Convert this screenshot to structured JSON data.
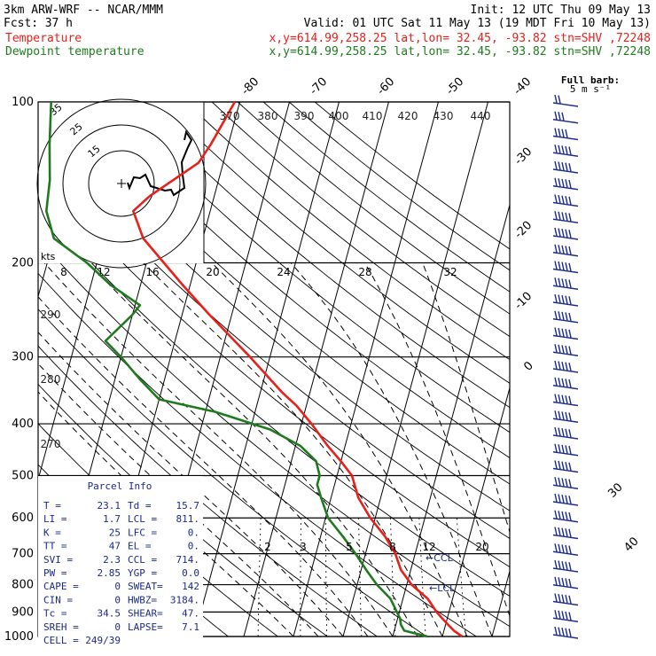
{
  "header": {
    "model": "3km ARW-WRF -- NCAR/MMM",
    "init": "Init: 12 UTC Thu 09 May 13",
    "fcst_label": "Fcst:",
    "fcst_value": "37 h",
    "valid": "Valid: 01 UTC Sat 11 May 13 (19 MDT Fri 10 May 13)"
  },
  "legend": {
    "temperature": {
      "label": "Temperature",
      "color": "#e8201a",
      "info": "x,y=614.99,258.25   lat,lon= 32.45, -93.82  stn=SHV ,72248"
    },
    "dewpoint": {
      "label": "Dewpoint temperature",
      "color": "#1f7a1f",
      "info": "x,y=614.99,258.25   lat,lon= 32.45, -93.82  stn=SHV ,72248"
    }
  },
  "wind_title": {
    "line1": "Full barb:",
    "line2": "5 m s⁻¹"
  },
  "hodograph": {
    "speed_label": "kts",
    "ring_labels": [
      "15",
      "25",
      "35"
    ],
    "x_tick_labels": [
      "8",
      "12",
      "16",
      "20",
      "24",
      "28",
      "32"
    ]
  },
  "parcel_info": {
    "title": "Parcel Info",
    "rows": [
      [
        "T  =",
        "23.1",
        "Td =",
        "15.7"
      ],
      [
        "LI =",
        "1.7",
        "LCL =",
        "811."
      ],
      [
        "K  =",
        "25",
        "LFC =",
        "0."
      ],
      [
        "TT =",
        "47",
        "EL =",
        "0."
      ],
      [
        "SVI =",
        "2.3",
        "CCL =",
        "714."
      ],
      [
        "PW =",
        "2.85",
        "YGP =",
        "0.0"
      ],
      [
        "CAPE =",
        "0",
        "SWEAT=",
        "142"
      ],
      [
        "CIN =",
        "0",
        "HWBZ=",
        "3184."
      ],
      [
        "Tc =",
        "34.5",
        "SHEAR=",
        "47."
      ],
      [
        "SREH =",
        "0",
        "LAPSE=",
        "7.1"
      ],
      [
        "CELL =",
        "249/39",
        "",
        ""
      ]
    ]
  },
  "chart_data": {
    "type": "line",
    "title": "Skew-T log-P diagram",
    "xlabel": "",
    "ylabel": "",
    "pressure_levels": [
      1000,
      900,
      800,
      700,
      600,
      500,
      400,
      300,
      200,
      100
    ],
    "isotherm_labels": [
      "-80",
      "-70",
      "-60",
      "-50",
      "-40",
      "-30",
      "-20",
      "-10",
      "0",
      "30",
      "40"
    ],
    "theta_labels": [
      "370",
      "380",
      "390",
      "400",
      "410",
      "420",
      "430",
      "440",
      "290",
      "280",
      "270"
    ],
    "mixing_ratio_labels": [
      "2",
      "3",
      "5",
      "8",
      "12",
      "20"
    ],
    "markers": [
      "CCL",
      "LCL"
    ],
    "series": [
      {
        "name": "Temperature",
        "color": "#e8201a",
        "p": [
          1000,
          975,
          950,
          925,
          900,
          850,
          800,
          750,
          700,
          650,
          600,
          550,
          500,
          470,
          440,
          400,
          370,
          350,
          300,
          250,
          220,
          200,
          180,
          160,
          150,
          130,
          120,
          100
        ],
        "t": [
          24.0,
          22.0,
          20.5,
          19.0,
          17.5,
          15.0,
          11.0,
          8.0,
          6.0,
          3.0,
          -1.0,
          -4.5,
          -7.0,
          -10.0,
          -13.5,
          -18.0,
          -22.0,
          -25.5,
          -34.0,
          -44.5,
          -51.5,
          -56.5,
          -62.0,
          -65.5,
          -63.0,
          -55.0,
          -53.5,
          -51.0
        ]
      },
      {
        "name": "Dewpoint temperature",
        "color": "#1f7a1f",
        "p": [
          1000,
          975,
          950,
          925,
          900,
          850,
          800,
          750,
          700,
          650,
          600,
          550,
          520,
          500,
          470,
          440,
          410,
          380,
          360,
          330,
          300,
          280,
          250,
          240,
          220,
          200,
          180,
          160,
          140,
          120,
          100
        ],
        "t": [
          17.0,
          12.0,
          11.0,
          10.5,
          9.5,
          7.5,
          4.0,
          1.0,
          -2.0,
          -5.5,
          -9.5,
          -12.0,
          -13.5,
          -13.5,
          -15.0,
          -19.0,
          -26.0,
          -38.0,
          -50.0,
          -55.0,
          -60.0,
          -64.0,
          -60.0,
          -59.0,
          -66.0,
          -72.0,
          -80.0,
          -83.0,
          -84.0,
          -86.0,
          -88.0
        ]
      }
    ],
    "wind_speeds_ms": [
      10,
      15,
      20,
      25,
      25,
      25,
      25,
      25,
      25,
      25,
      25,
      25,
      25,
      25,
      25,
      25,
      25,
      25,
      25,
      25,
      25,
      25,
      25,
      25,
      25,
      25,
      25,
      25,
      25,
      25,
      25,
      25,
      25
    ]
  }
}
